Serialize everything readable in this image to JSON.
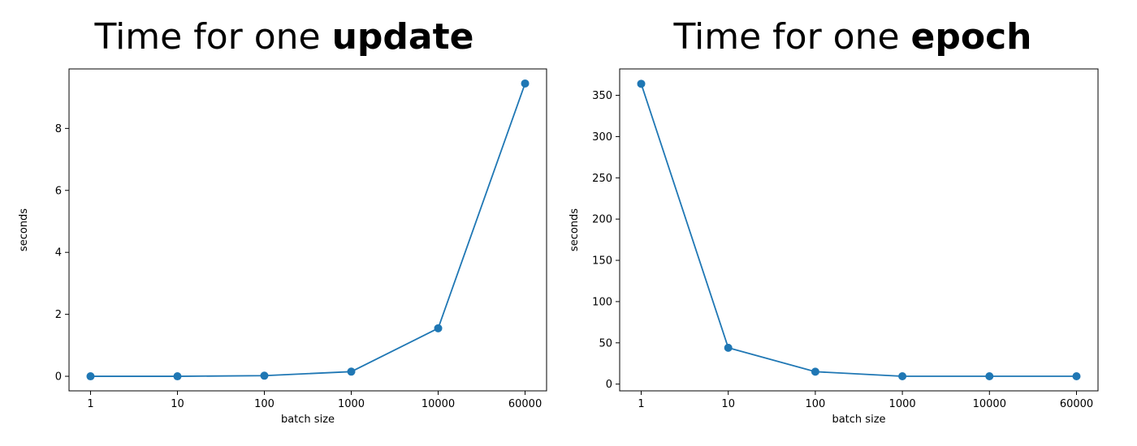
{
  "colors": {
    "series": "#1f77b4",
    "axis": "#000000"
  },
  "chart_data": [
    {
      "type": "line",
      "title": {
        "plain": "Time for one ",
        "bold": "update"
      },
      "xlabel": "batch size",
      "ylabel": "seconds",
      "categories": [
        "1",
        "10",
        "100",
        "1000",
        "10000",
        "60000"
      ],
      "values": [
        0.0,
        0.0,
        0.02,
        0.15,
        1.55,
        9.45
      ],
      "ylim": [
        -0.47,
        9.92
      ],
      "yticks": [
        0,
        2,
        4,
        6,
        8
      ],
      "grid": false,
      "marker": "circle"
    },
    {
      "type": "line",
      "title": {
        "plain": "Time for one ",
        "bold": "epoch"
      },
      "xlabel": "batch size",
      "ylabel": "seconds",
      "categories": [
        "1",
        "10",
        "100",
        "1000",
        "10000",
        "60000"
      ],
      "values": [
        364,
        44,
        15,
        9.5,
        9.5,
        9.5
      ],
      "ylim": [
        -8.2,
        382
      ],
      "yticks": [
        0,
        50,
        100,
        150,
        200,
        250,
        300,
        350
      ],
      "grid": false,
      "marker": "circle"
    }
  ]
}
